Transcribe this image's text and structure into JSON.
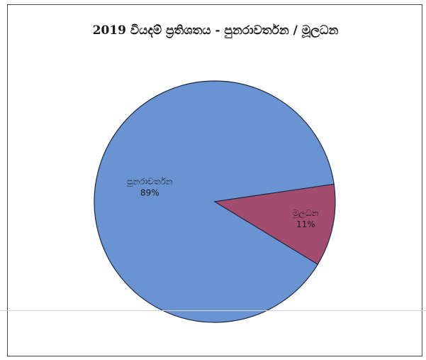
{
  "chart_data": {
    "type": "pie",
    "title": "2019 වියදම් ප්‍රතිශතය - පුනරාවර්තන / මූලධන",
    "categories": [
      "පුනරාවර්තන",
      "මූලධන"
    ],
    "values": [
      89,
      11
    ],
    "data_labels": [
      "89%",
      "11%"
    ],
    "colors": [
      "#6a93d2",
      "#a44c6d"
    ],
    "legend": "none"
  }
}
